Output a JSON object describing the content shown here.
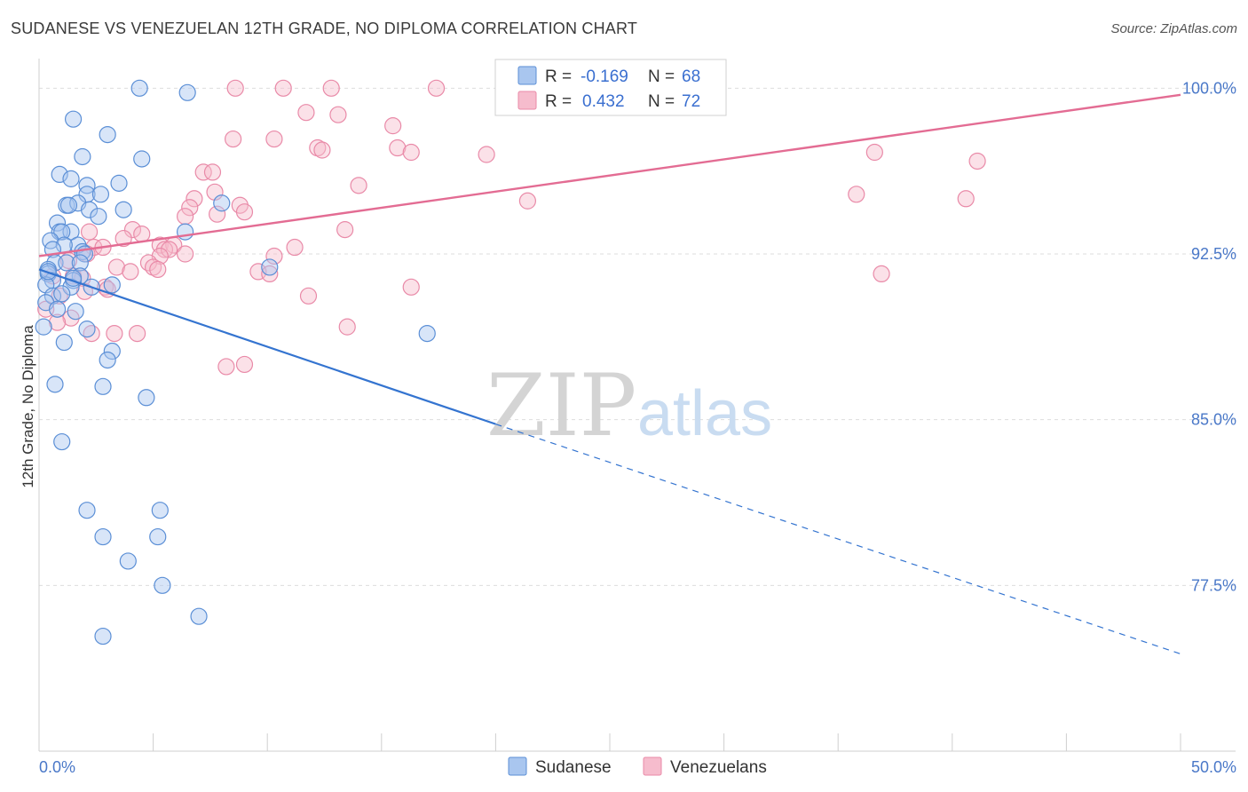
{
  "header": {
    "title": "SUDANESE VS VENEZUELAN 12TH GRADE, NO DIPLOMA CORRELATION CHART",
    "source": "Source: ZipAtlas.com"
  },
  "watermark": {
    "zip": "ZIP",
    "atlas": "atlas"
  },
  "colors": {
    "blue_fill": "#a9c6ef",
    "blue_stroke": "#5b8fd6",
    "blue_line": "#3474d0",
    "pink_fill": "#f6bccd",
    "pink_stroke": "#e98aa8",
    "pink_line": "#e36c93",
    "tick_text": "#4a78c8",
    "grid": "#dddddd"
  },
  "legend_stats": {
    "r_label": "R =",
    "n_label": "N =",
    "sudanese": {
      "r": "-0.169",
      "n": "68"
    },
    "venezuelans": {
      "r": "0.432",
      "n": "72"
    }
  },
  "chart_data": {
    "type": "scatter",
    "title": "SUDANESE VS VENEZUELAN 12TH GRADE, NO DIPLOMA CORRELATION CHART",
    "xlabel": "",
    "ylabel": "12th Grade, No Diploma",
    "xlim": [
      0,
      50
    ],
    "ylim": [
      70.0,
      101.5
    ],
    "x_tick_labels": [
      "0.0%",
      "50.0%"
    ],
    "y_ticks": [
      77.5,
      85.0,
      92.5,
      100.0
    ],
    "y_tick_labels": [
      "77.5%",
      "85.0%",
      "92.5%",
      "100.0%"
    ],
    "grid": true,
    "legend_position": "bottom",
    "series": [
      {
        "name": "Sudanese",
        "trend": {
          "x0": 0,
          "y0": 91.8,
          "x1": 20,
          "y1": 84.8,
          "dash_to_x": 50,
          "dash_to_y": 74.4
        },
        "points": [
          [
            4.4,
            100.0
          ],
          [
            6.5,
            99.8
          ],
          [
            1.5,
            98.6
          ],
          [
            3.0,
            97.9
          ],
          [
            1.9,
            96.9
          ],
          [
            4.5,
            96.8
          ],
          [
            0.9,
            96.1
          ],
          [
            1.4,
            95.9
          ],
          [
            2.1,
            95.6
          ],
          [
            3.5,
            95.7
          ],
          [
            2.1,
            95.2
          ],
          [
            2.7,
            95.2
          ],
          [
            1.2,
            94.7
          ],
          [
            1.7,
            94.8
          ],
          [
            2.2,
            94.5
          ],
          [
            3.7,
            94.5
          ],
          [
            1.3,
            94.7
          ],
          [
            2.6,
            94.2
          ],
          [
            8.0,
            94.8
          ],
          [
            0.8,
            93.9
          ],
          [
            0.9,
            93.5
          ],
          [
            1.4,
            93.5
          ],
          [
            1.0,
            93.5
          ],
          [
            6.4,
            93.5
          ],
          [
            0.5,
            93.1
          ],
          [
            1.7,
            92.9
          ],
          [
            1.1,
            92.9
          ],
          [
            0.6,
            92.7
          ],
          [
            1.9,
            92.6
          ],
          [
            2.0,
            92.5
          ],
          [
            0.7,
            92.1
          ],
          [
            1.2,
            92.1
          ],
          [
            1.8,
            92.1
          ],
          [
            0.4,
            91.8
          ],
          [
            0.4,
            91.6
          ],
          [
            1.8,
            91.5
          ],
          [
            10.1,
            91.9
          ],
          [
            0.6,
            91.3
          ],
          [
            1.5,
            91.3
          ],
          [
            0.3,
            91.1
          ],
          [
            1.4,
            91.0
          ],
          [
            2.3,
            91.0
          ],
          [
            3.2,
            91.1
          ],
          [
            0.6,
            90.6
          ],
          [
            1.0,
            90.7
          ],
          [
            0.3,
            90.3
          ],
          [
            0.8,
            90.0
          ],
          [
            1.6,
            89.9
          ],
          [
            0.2,
            89.2
          ],
          [
            2.1,
            89.1
          ],
          [
            17.0,
            88.9
          ],
          [
            1.1,
            88.5
          ],
          [
            3.2,
            88.1
          ],
          [
            3.0,
            87.7
          ],
          [
            0.7,
            86.6
          ],
          [
            2.8,
            86.5
          ],
          [
            4.7,
            86.0
          ],
          [
            1.0,
            84.0
          ],
          [
            2.1,
            80.9
          ],
          [
            5.3,
            80.9
          ],
          [
            2.8,
            79.7
          ],
          [
            5.2,
            79.7
          ],
          [
            3.9,
            78.6
          ],
          [
            5.4,
            77.5
          ],
          [
            7.0,
            76.1
          ],
          [
            2.8,
            75.2
          ],
          [
            0.4,
            91.7
          ],
          [
            1.5,
            91.4
          ]
        ]
      },
      {
        "name": "Venezuelans",
        "trend": {
          "x0": 0,
          "y0": 92.4,
          "x1": 50,
          "y1": 99.7
        },
        "points": [
          [
            8.6,
            100.0
          ],
          [
            10.7,
            100.0
          ],
          [
            12.8,
            100.0
          ],
          [
            17.4,
            100.0
          ],
          [
            11.7,
            98.9
          ],
          [
            13.1,
            98.8
          ],
          [
            15.5,
            98.3
          ],
          [
            8.5,
            97.7
          ],
          [
            10.3,
            97.7
          ],
          [
            12.2,
            97.3
          ],
          [
            12.4,
            97.2
          ],
          [
            15.7,
            97.3
          ],
          [
            16.3,
            97.1
          ],
          [
            19.6,
            97.0
          ],
          [
            36.6,
            97.1
          ],
          [
            41.1,
            96.7
          ],
          [
            7.2,
            96.2
          ],
          [
            7.6,
            96.2
          ],
          [
            14.0,
            95.6
          ],
          [
            7.7,
            95.3
          ],
          [
            35.8,
            95.2
          ],
          [
            40.6,
            95.0
          ],
          [
            6.8,
            95.0
          ],
          [
            21.4,
            94.9
          ],
          [
            6.6,
            94.6
          ],
          [
            8.8,
            94.7
          ],
          [
            9.0,
            94.4
          ],
          [
            7.8,
            94.3
          ],
          [
            6.4,
            94.2
          ],
          [
            2.2,
            93.5
          ],
          [
            4.1,
            93.6
          ],
          [
            4.5,
            93.4
          ],
          [
            13.4,
            93.6
          ],
          [
            3.7,
            93.2
          ],
          [
            5.3,
            92.9
          ],
          [
            5.9,
            92.9
          ],
          [
            2.4,
            92.8
          ],
          [
            2.8,
            92.8
          ],
          [
            5.5,
            92.7
          ],
          [
            5.7,
            92.7
          ],
          [
            11.2,
            92.8
          ],
          [
            6.4,
            92.5
          ],
          [
            2.1,
            92.5
          ],
          [
            5.3,
            92.4
          ],
          [
            10.3,
            92.4
          ],
          [
            1.3,
            92.2
          ],
          [
            4.8,
            92.1
          ],
          [
            3.4,
            91.9
          ],
          [
            5.0,
            91.9
          ],
          [
            5.2,
            91.8
          ],
          [
            4.0,
            91.7
          ],
          [
            9.6,
            91.7
          ],
          [
            10.1,
            91.6
          ],
          [
            36.9,
            91.6
          ],
          [
            0.6,
            91.5
          ],
          [
            1.5,
            91.5
          ],
          [
            1.9,
            91.4
          ],
          [
            2.9,
            91.0
          ],
          [
            3.0,
            90.9
          ],
          [
            16.3,
            91.0
          ],
          [
            0.9,
            90.6
          ],
          [
            11.8,
            90.6
          ],
          [
            2.0,
            90.8
          ],
          [
            0.3,
            90.0
          ],
          [
            1.4,
            89.6
          ],
          [
            0.8,
            89.4
          ],
          [
            13.5,
            89.2
          ],
          [
            3.3,
            88.9
          ],
          [
            4.3,
            88.9
          ],
          [
            8.2,
            87.4
          ],
          [
            9.0,
            87.5
          ],
          [
            2.3,
            88.9
          ]
        ]
      }
    ]
  },
  "legend_bottom": {
    "items": [
      "Sudanese",
      "Venezuelans"
    ]
  }
}
